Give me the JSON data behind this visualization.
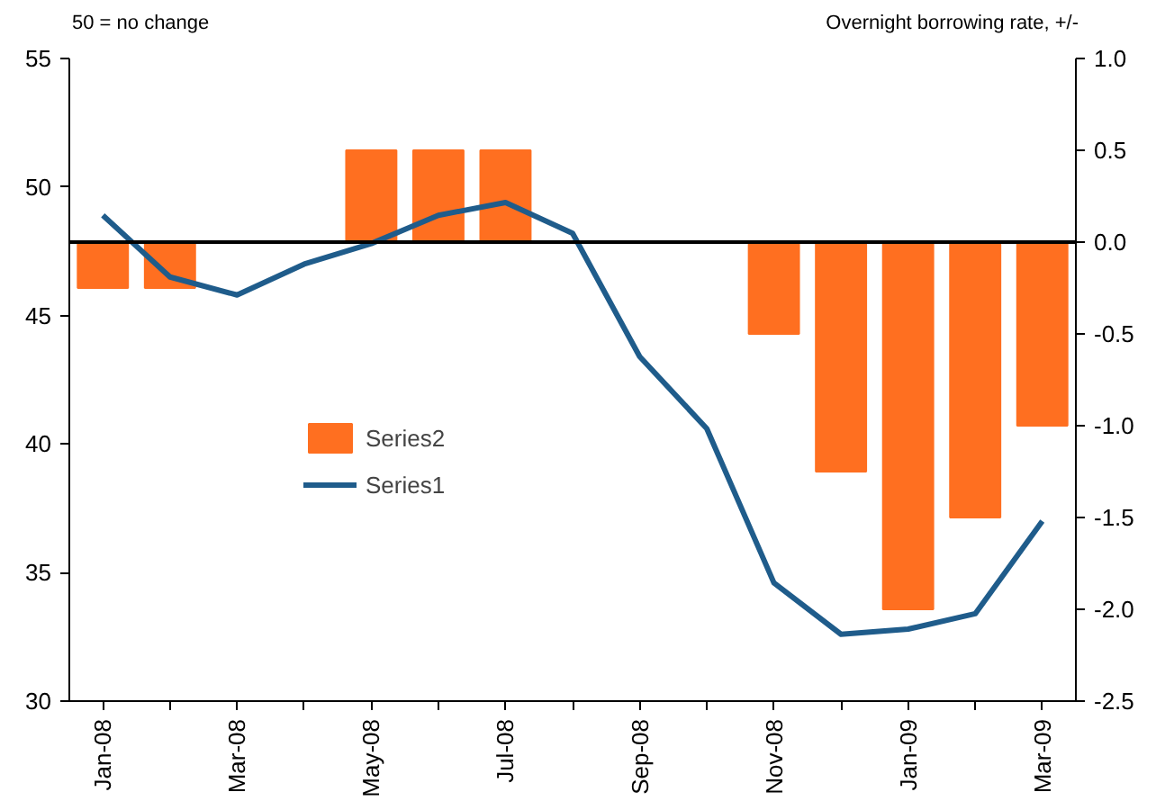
{
  "chart_data": {
    "type": "bar",
    "ylabel": "50 = no change",
    "y2label": "Overnight borrowing rate, +/-",
    "categories": [
      "Jan-08",
      null,
      "Mar-08",
      null,
      "May-08",
      null,
      "Jul-08",
      null,
      "Sep-08",
      null,
      "Nov-08",
      null,
      "Jan-09",
      null,
      "Mar-09"
    ],
    "series": [
      {
        "name": "Series2",
        "axis": "y2",
        "color": "#ff6f20",
        "values": [
          -0.25,
          -0.25,
          null,
          null,
          0.5,
          0.5,
          0.5,
          null,
          null,
          null,
          -0.5,
          -1.25,
          -2.0,
          -1.5,
          -1.0
        ]
      },
      {
        "name": "Series1",
        "type": "line",
        "color": "#1f5c8b",
        "values": [
          48.9,
          46.5,
          45.8,
          47.0,
          47.8,
          48.9,
          49.4,
          48.2,
          43.4,
          40.6,
          34.6,
          32.6,
          32.8,
          33.4,
          37.0
        ]
      }
    ],
    "ylim": [
      30,
      55
    ],
    "yticks": [
      30,
      35,
      40,
      45,
      50,
      55
    ],
    "y2lim": [
      -2.5,
      1.0
    ],
    "y2ticks": [
      {
        "value": -2.5,
        "label": "-2.5"
      },
      {
        "value": -2.0,
        "label": "-2.0"
      },
      {
        "value": -1.5,
        "label": "-1.5"
      },
      {
        "value": -1.0,
        "label": "-1.0"
      },
      {
        "value": -0.5,
        "label": "-0.5"
      },
      {
        "value": 0,
        "label": "0.0"
      },
      {
        "value": 0.5,
        "label": "0.5"
      },
      {
        "value": 1.0,
        "label": "1.0"
      }
    ],
    "ref_lines": [
      {
        "axis": "y2",
        "value": 0,
        "color": "#000000"
      }
    ],
    "grid": false,
    "legend": "left"
  }
}
